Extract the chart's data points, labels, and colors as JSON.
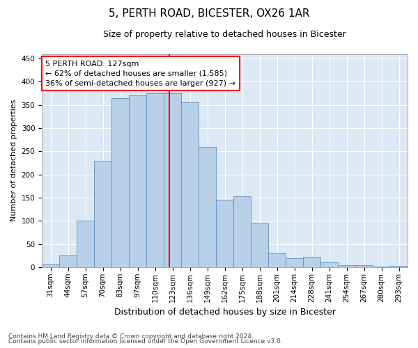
{
  "title1": "5, PERTH ROAD, BICESTER, OX26 1AR",
  "title2": "Size of property relative to detached houses in Bicester",
  "xlabel": "Distribution of detached houses by size in Bicester",
  "ylabel": "Number of detached properties",
  "categories": [
    "31sqm",
    "44sqm",
    "57sqm",
    "70sqm",
    "83sqm",
    "97sqm",
    "110sqm",
    "123sqm",
    "136sqm",
    "149sqm",
    "162sqm",
    "175sqm",
    "188sqm",
    "201sqm",
    "214sqm",
    "228sqm",
    "241sqm",
    "254sqm",
    "267sqm",
    "280sqm",
    "293sqm"
  ],
  "values": [
    8,
    25,
    100,
    230,
    365,
    370,
    375,
    375,
    355,
    260,
    145,
    153,
    95,
    30,
    20,
    22,
    10,
    4,
    5,
    1,
    3
  ],
  "bar_color": "#b8d0e8",
  "bar_edge_color": "#6090c0",
  "annotation_title": "5 PERTH ROAD: 127sqm",
  "annotation_line1": "← 62% of detached houses are smaller (1,585)",
  "annotation_line2": "36% of semi-detached houses are larger (927) →",
  "annotation_box_color": "white",
  "annotation_box_edge_color": "red",
  "line_color": "red",
  "ylim": [
    0,
    460
  ],
  "yticks": [
    0,
    50,
    100,
    150,
    200,
    250,
    300,
    350,
    400,
    450
  ],
  "footnote1": "Contains HM Land Registry data © Crown copyright and database right 2024.",
  "footnote2": "Contains public sector information licensed under the Open Government Licence v3.0.",
  "background_color": "#dce8f4",
  "title1_fontsize": 11,
  "title2_fontsize": 9,
  "xlabel_fontsize": 9,
  "ylabel_fontsize": 8,
  "tick_fontsize": 7.5,
  "annotation_fontsize": 8,
  "footnote_fontsize": 6.5
}
